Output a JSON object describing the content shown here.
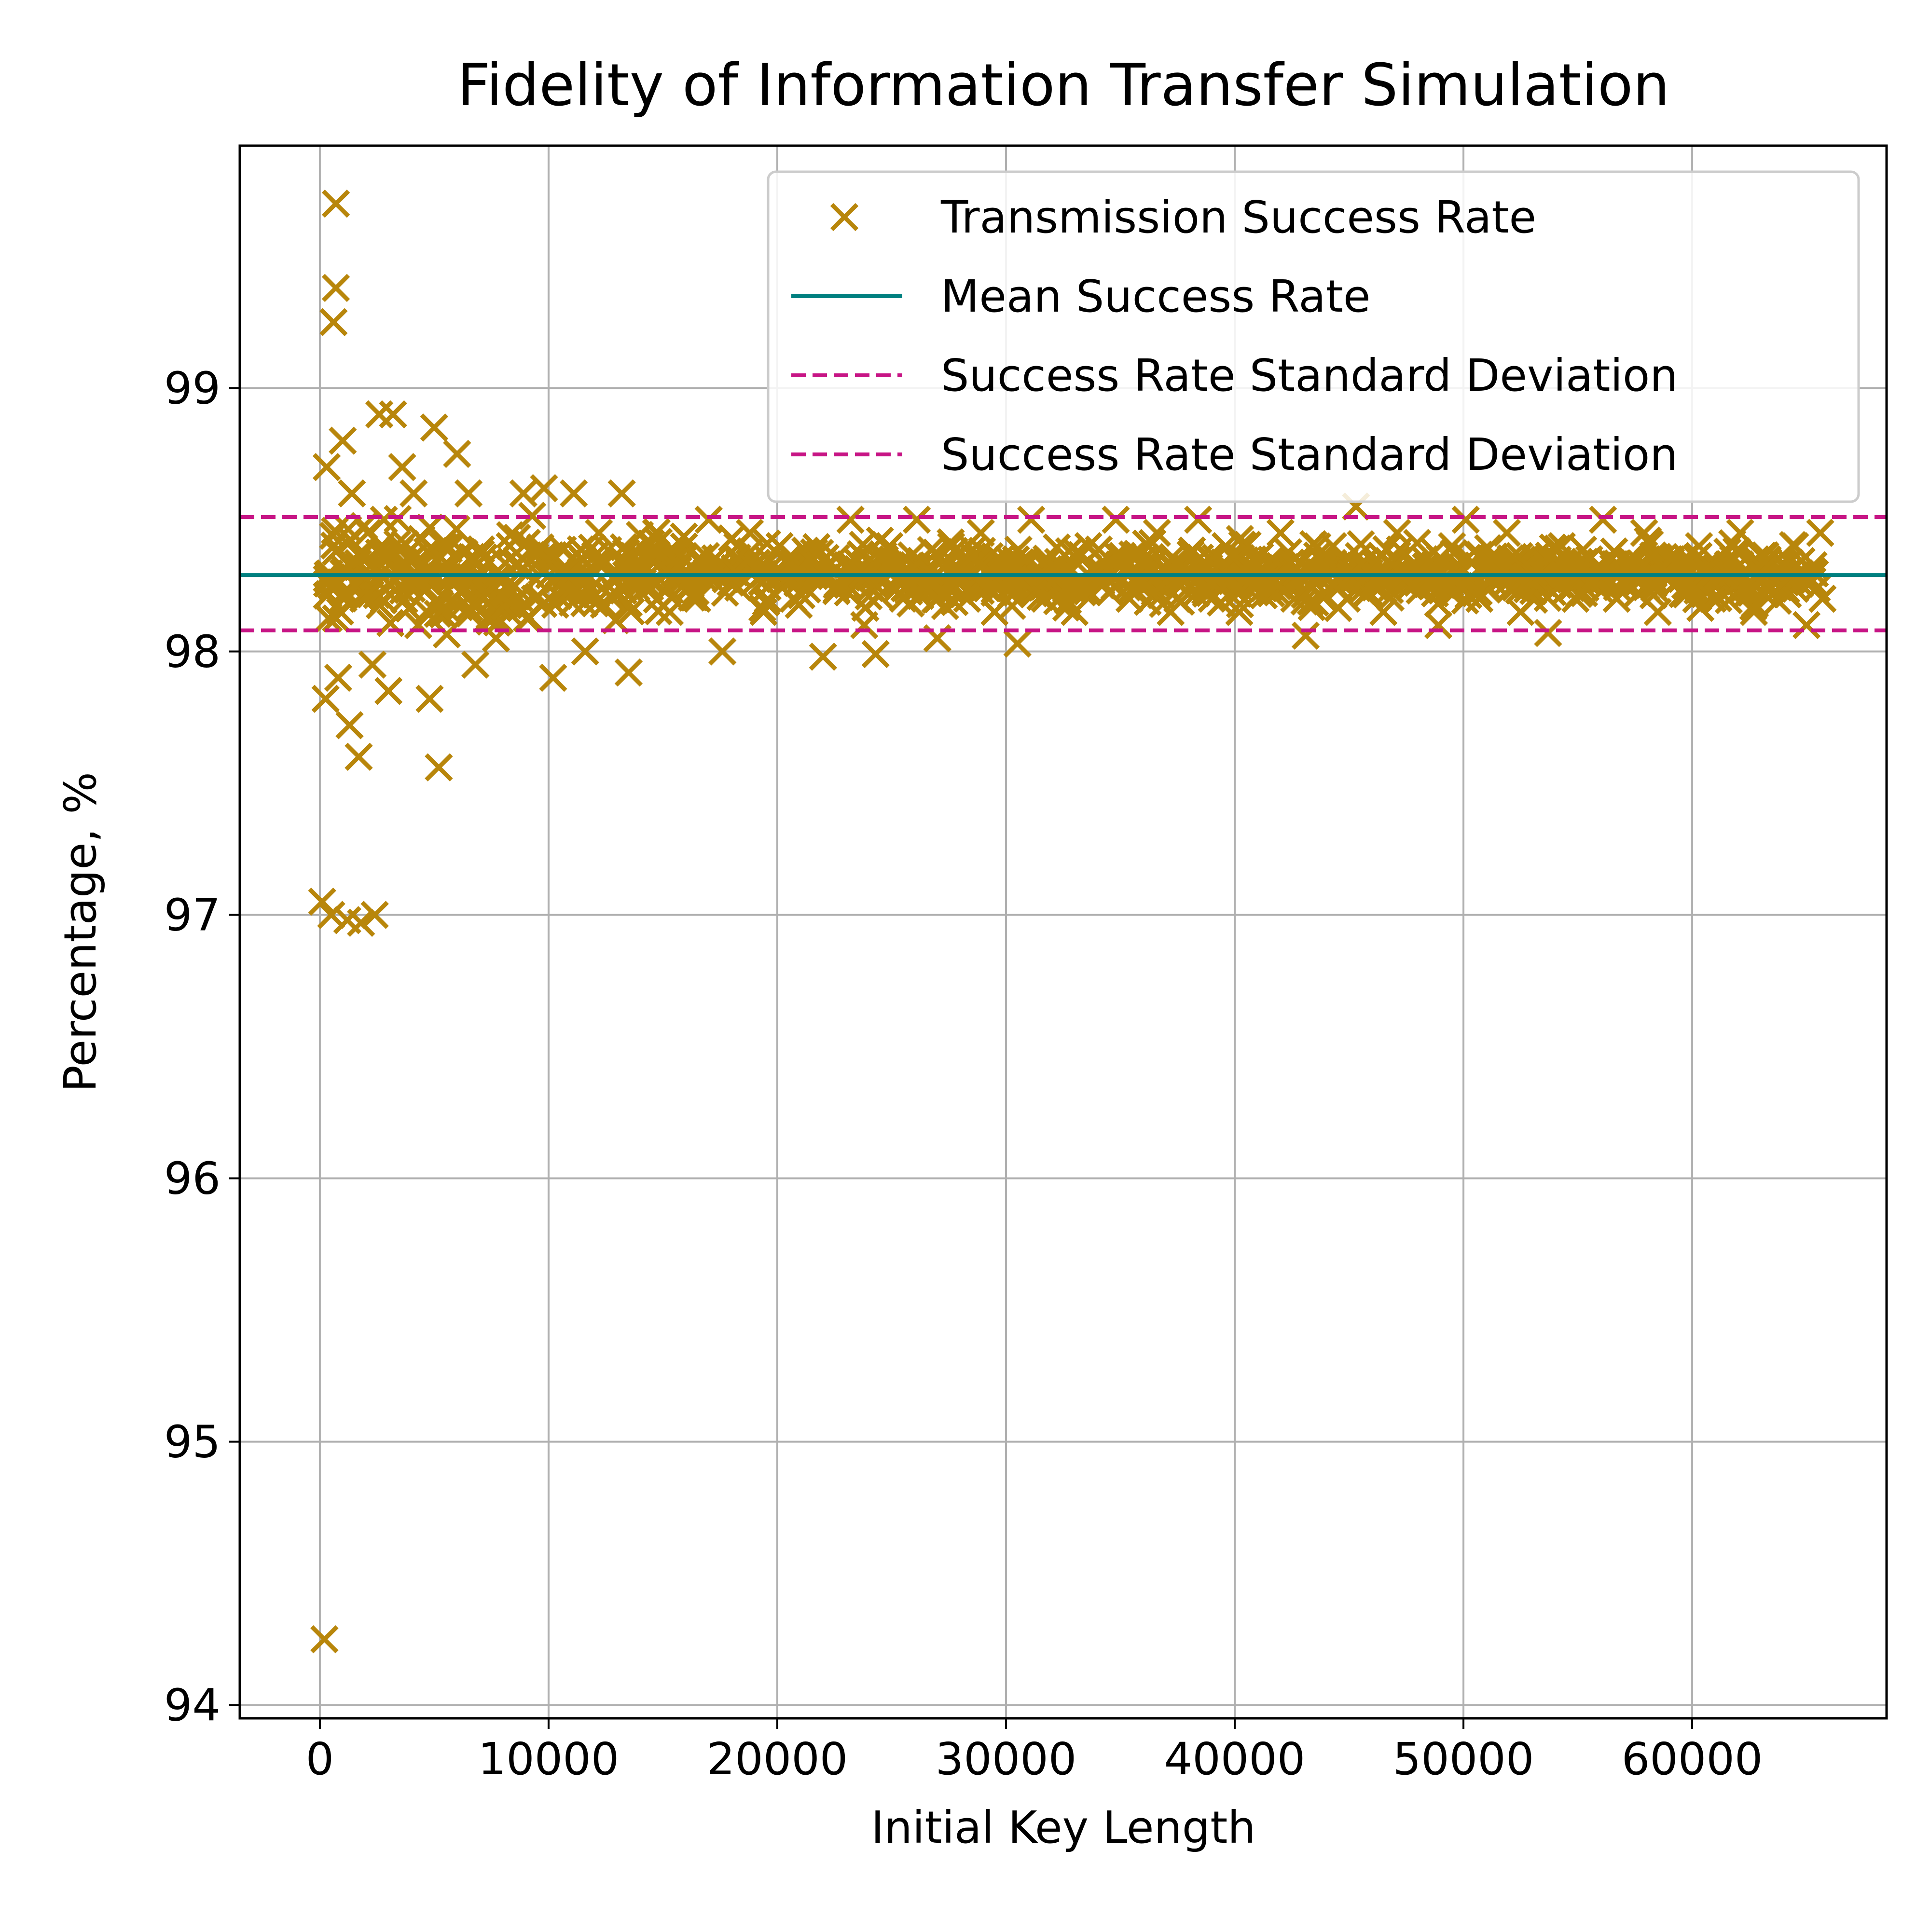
{
  "chart_data": {
    "type": "scatter",
    "title": "Fidelity of Information Transfer Simulation",
    "xlabel": "Initial Key Length",
    "ylabel": "Percentage, %",
    "xlim": [
      -3500,
      68500
    ],
    "ylim": [
      93.95,
      99.92
    ],
    "x_ticks": [
      0,
      10000,
      20000,
      30000,
      40000,
      50000,
      60000
    ],
    "x_tick_labels": [
      "0",
      "10000",
      "20000",
      "30000",
      "40000",
      "50000",
      "60000"
    ],
    "y_ticks": [
      94,
      95,
      96,
      97,
      98,
      99
    ],
    "y_tick_labels": [
      "94",
      "95",
      "96",
      "97",
      "98",
      "99"
    ],
    "grid": true,
    "legend_position": "top-right",
    "series": [
      {
        "name": "Transmission Success Rate",
        "kind": "scatter",
        "marker": "x",
        "color": "#b8860b",
        "points": [
          [
            200,
            94.25
          ],
          [
            100,
            97.05
          ],
          [
            500,
            97.0
          ],
          [
            1200,
            96.98
          ],
          [
            1800,
            96.97
          ],
          [
            2400,
            97.0
          ],
          [
            700,
            99.7
          ],
          [
            700,
            99.38
          ],
          [
            600,
            99.25
          ],
          [
            300,
            98.7
          ],
          [
            500,
            98.25
          ],
          [
            250,
            97.82
          ],
          [
            800,
            97.9
          ],
          [
            1300,
            97.72
          ],
          [
            1700,
            97.6
          ],
          [
            1000,
            98.8
          ],
          [
            1400,
            98.6
          ],
          [
            2100,
            98.45
          ],
          [
            2600,
            98.9
          ],
          [
            3200,
            98.9
          ],
          [
            2800,
            98.5
          ],
          [
            1900,
            98.2
          ],
          [
            2300,
            97.95
          ],
          [
            3000,
            97.85
          ],
          [
            3600,
            98.7
          ],
          [
            4100,
            98.6
          ],
          [
            4300,
            98.1
          ],
          [
            4800,
            97.82
          ],
          [
            5200,
            97.56
          ],
          [
            5000,
            98.85
          ],
          [
            5600,
            98.4
          ],
          [
            6000,
            98.75
          ],
          [
            6500,
            98.6
          ],
          [
            7100,
            98.2
          ],
          [
            6800,
            97.95
          ],
          [
            7700,
            98.05
          ],
          [
            8300,
            98.4
          ],
          [
            8900,
            98.6
          ],
          [
            9400,
            98.2
          ],
          [
            9800,
            98.62
          ],
          [
            10200,
            97.9
          ],
          [
            10700,
            98.3
          ],
          [
            11100,
            98.6
          ],
          [
            11600,
            98.0
          ],
          [
            12200,
            98.45
          ],
          [
            12800,
            98.2
          ],
          [
            13200,
            98.6
          ],
          [
            13500,
            97.92
          ],
          [
            14100,
            98.3
          ],
          [
            14700,
            98.45
          ],
          [
            15300,
            98.15
          ],
          [
            15900,
            98.35
          ],
          [
            16500,
            98.2
          ],
          [
            17000,
            98.5
          ],
          [
            17600,
            98.0
          ],
          [
            18200,
            98.3
          ],
          [
            18800,
            98.45
          ],
          [
            19400,
            98.15
          ],
          [
            20100,
            98.4
          ],
          [
            20700,
            98.2
          ],
          [
            21400,
            98.35
          ],
          [
            22000,
            97.98
          ],
          [
            22600,
            98.25
          ],
          [
            23200,
            98.5
          ],
          [
            23800,
            98.1
          ],
          [
            24300,
            97.99
          ],
          [
            24900,
            98.4
          ],
          [
            25500,
            98.2
          ],
          [
            26100,
            98.5
          ],
          [
            26700,
            98.3
          ],
          [
            27000,
            98.05
          ],
          [
            27600,
            98.4
          ],
          [
            28300,
            98.2
          ],
          [
            28900,
            98.45
          ],
          [
            29500,
            98.15
          ],
          [
            30100,
            98.35
          ],
          [
            30500,
            98.03
          ],
          [
            31100,
            98.5
          ],
          [
            31700,
            98.2
          ],
          [
            32400,
            98.3
          ],
          [
            33000,
            98.15
          ],
          [
            33600,
            98.4
          ],
          [
            34200,
            98.25
          ],
          [
            34800,
            98.5
          ],
          [
            35400,
            98.2
          ],
          [
            36000,
            98.35
          ],
          [
            36600,
            98.45
          ],
          [
            37200,
            98.15
          ],
          [
            37800,
            98.3
          ],
          [
            38400,
            98.5
          ],
          [
            39000,
            98.2
          ],
          [
            39600,
            98.4
          ],
          [
            40200,
            98.15
          ],
          [
            40800,
            98.35
          ],
          [
            41400,
            98.25
          ],
          [
            42000,
            98.45
          ],
          [
            42600,
            98.2
          ],
          [
            43100,
            98.06
          ],
          [
            43700,
            98.3
          ],
          [
            44300,
            98.4
          ],
          [
            44900,
            98.2
          ],
          [
            45300,
            98.55
          ],
          [
            45900,
            98.3
          ],
          [
            46500,
            98.15
          ],
          [
            47100,
            98.45
          ],
          [
            47700,
            98.25
          ],
          [
            48300,
            98.35
          ],
          [
            48900,
            98.1
          ],
          [
            49500,
            98.4
          ],
          [
            50100,
            98.5
          ],
          [
            50700,
            98.2
          ],
          [
            51300,
            98.35
          ],
          [
            51900,
            98.45
          ],
          [
            52500,
            98.15
          ],
          [
            53100,
            98.3
          ],
          [
            53700,
            98.07
          ],
          [
            54300,
            98.4
          ],
          [
            54900,
            98.2
          ],
          [
            55500,
            98.35
          ],
          [
            56100,
            98.5
          ],
          [
            56700,
            98.2
          ],
          [
            57300,
            98.3
          ],
          [
            57900,
            98.45
          ],
          [
            58500,
            98.15
          ],
          [
            59100,
            98.35
          ],
          [
            59700,
            98.25
          ],
          [
            60300,
            98.4
          ],
          [
            60900,
            98.2
          ],
          [
            61500,
            98.3
          ],
          [
            62100,
            98.45
          ],
          [
            62700,
            98.15
          ],
          [
            63300,
            98.35
          ],
          [
            63900,
            98.25
          ],
          [
            64500,
            98.4
          ],
          [
            65000,
            98.1
          ],
          [
            65300,
            98.3
          ],
          [
            65600,
            98.45
          ],
          [
            65700,
            98.2
          ]
        ]
      },
      {
        "name": "Mean Success Rate",
        "kind": "hline",
        "value": 98.29,
        "color": "#008080",
        "style": "solid"
      },
      {
        "name": "Success Rate Standard Deviation",
        "kind": "hline",
        "value": 98.51,
        "color": "#c71585",
        "style": "dashed"
      },
      {
        "name": "Success Rate Standard Deviation",
        "kind": "hline",
        "value": 98.08,
        "color": "#c71585",
        "style": "dashed"
      }
    ]
  }
}
